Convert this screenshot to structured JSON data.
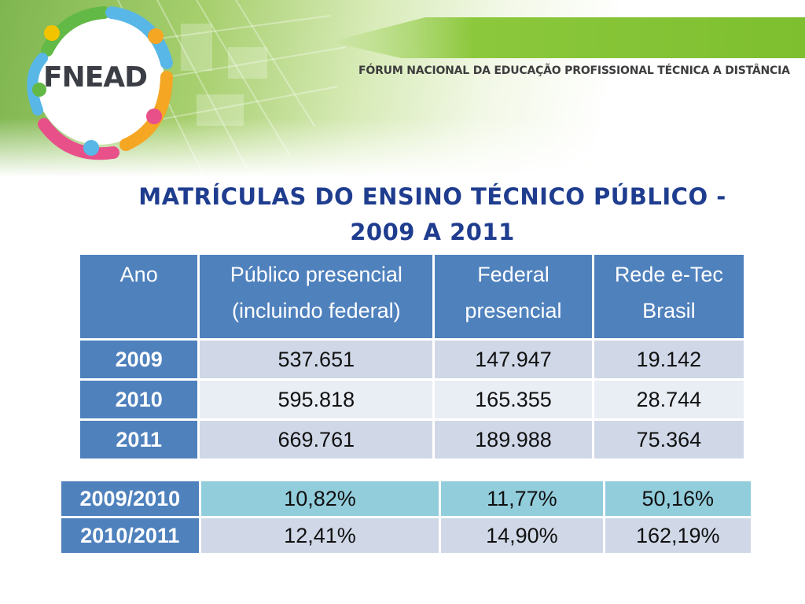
{
  "header": {
    "logo_text": "FNEAD",
    "forum_title": "FÓRUM NACIONAL DA EDUCAÇÃO PROFISSIONAL TÉCNICA A DISTÂNCIA",
    "logo_colors": [
      "#f5a623",
      "#e8508a",
      "#58b7e6",
      "#63b946",
      "#f2c400"
    ]
  },
  "slide": {
    "title_line1": "MATRÍCULAS DO ENSINO TÉCNICO PÚBLICO -",
    "title_line2": "2009 A 2011"
  },
  "enrollment_table": {
    "headers": [
      {
        "line1": "Ano",
        "line2": ""
      },
      {
        "line1": "Público presencial",
        "line2": "(incluindo federal)"
      },
      {
        "line1": "Federal",
        "line2": "presencial"
      },
      {
        "line1": "Rede e-Tec",
        "line2": "Brasil"
      }
    ],
    "rows": [
      {
        "year": "2009",
        "publico": "537.651",
        "federal": "147.947",
        "etec": "19.142"
      },
      {
        "year": "2010",
        "publico": "595.818",
        "federal": "165.355",
        "etec": "28.744"
      },
      {
        "year": "2011",
        "publico": "669.761",
        "federal": "189.988",
        "etec": "75.364"
      }
    ]
  },
  "growth_table": {
    "rows": [
      {
        "period": "2009/2010",
        "publico": "10,82%",
        "federal": "11,77%",
        "etec": "50,16%"
      },
      {
        "period": "2010/2011",
        "publico": "12,41%",
        "federal": "14,90%",
        "etec": "162,19%"
      }
    ]
  },
  "colors": {
    "title_blue": "#1f3d8f",
    "header_cell_blue": "#4f81bd",
    "row_light": "#d0d8e8",
    "row_lighter": "#e9edf4",
    "growth_cyan": "#92cddc"
  }
}
